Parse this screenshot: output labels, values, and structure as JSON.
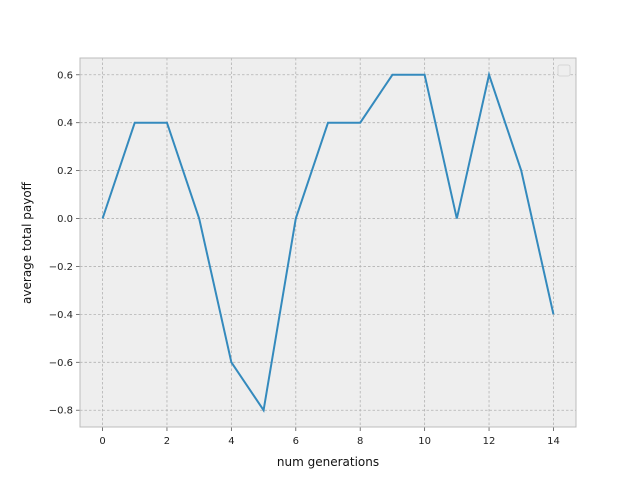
{
  "chart_data": {
    "type": "line",
    "title": "",
    "xlabel": "num generations",
    "ylabel": "average total payoff",
    "xlim": [
      -0.7,
      14.7
    ],
    "ylim": [
      -0.87,
      0.67
    ],
    "xticks": [
      0,
      2,
      4,
      6,
      8,
      10,
      12,
      14
    ],
    "xtick_labels": [
      "0",
      "2",
      "4",
      "6",
      "8",
      "10",
      "12",
      "14"
    ],
    "yticks": [
      -0.8,
      -0.6,
      -0.4,
      -0.2,
      0.0,
      0.2,
      0.4,
      0.6
    ],
    "ytick_labels": [
      "−0.8",
      "−0.6",
      "−0.4",
      "−0.2",
      "0.0",
      "0.2",
      "0.4",
      "0.6"
    ],
    "grid": true,
    "legend": {
      "placement": "top-right",
      "entries": []
    },
    "series": [
      {
        "color": "#348abd",
        "x": [
          0,
          1,
          2,
          3,
          4,
          5,
          6,
          7,
          8,
          9,
          10,
          11,
          12,
          13,
          14
        ],
        "y": [
          0.0,
          0.4,
          0.4,
          0.0,
          -0.6,
          -0.8,
          0.0,
          0.4,
          0.4,
          0.6,
          0.6,
          0.0,
          0.6,
          0.2,
          -0.4
        ]
      }
    ],
    "colors": {
      "axes_bg": "#eeeeee",
      "grid": "#b2b2b2",
      "spine": "#bcbcbc"
    }
  }
}
